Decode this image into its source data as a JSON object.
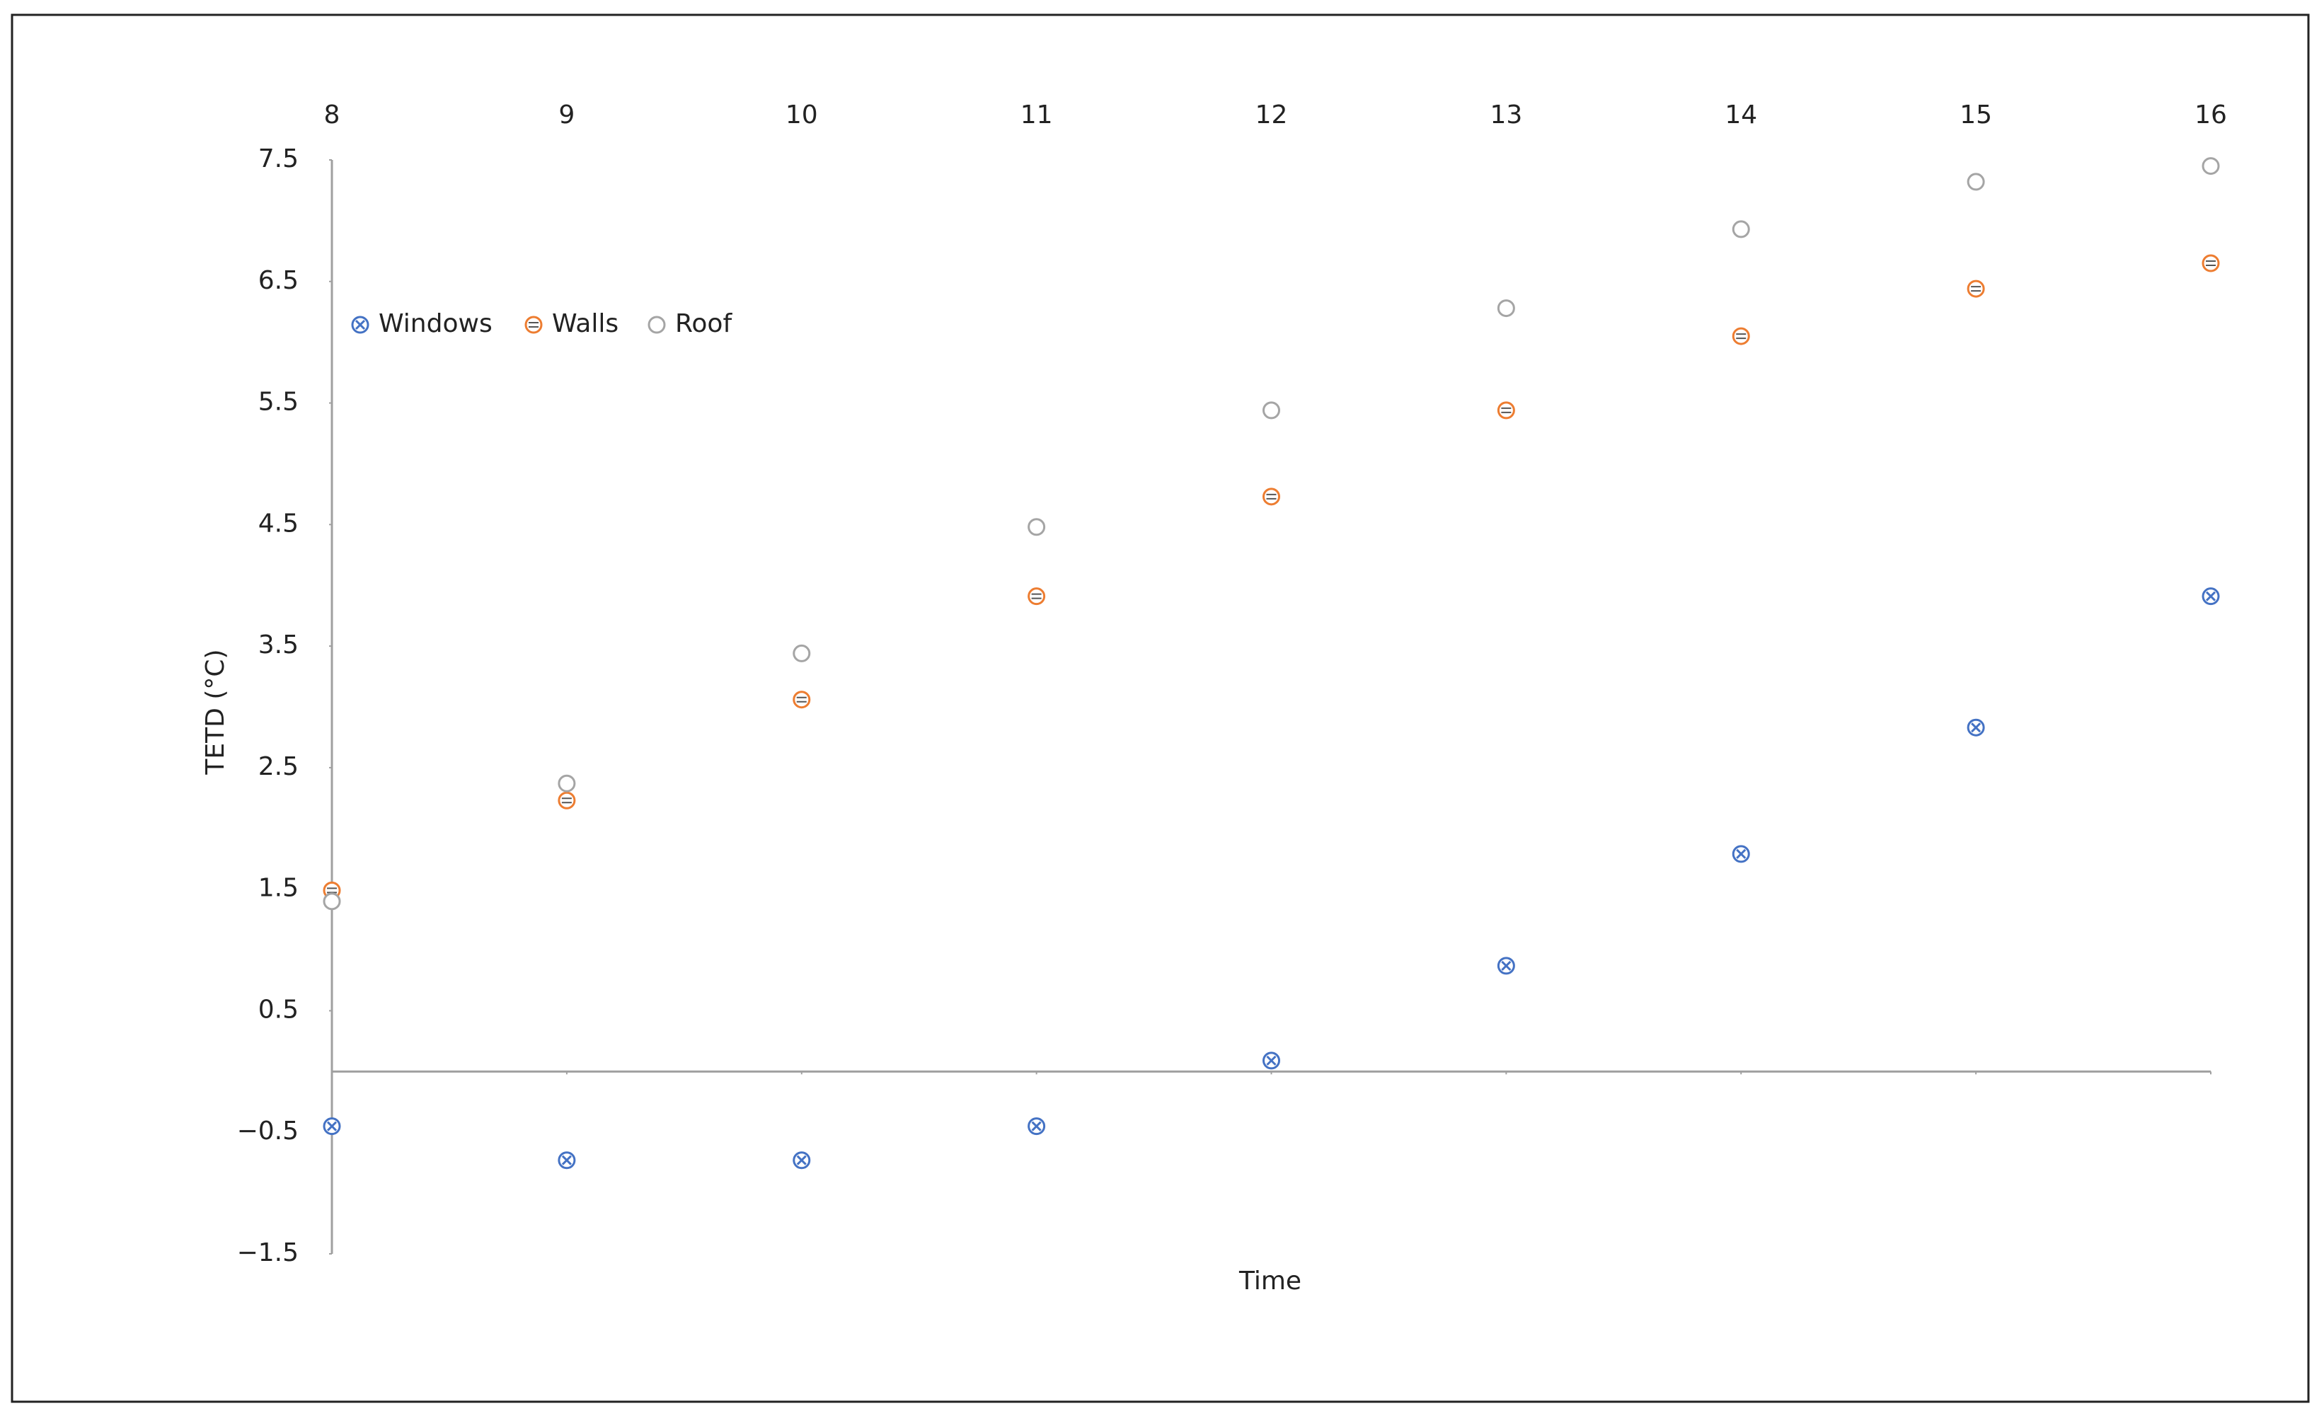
{
  "chart_data": {
    "type": "scatter",
    "x_label": "Time",
    "y_label": "TETD (°C)",
    "x": [
      8,
      9,
      10,
      11,
      12,
      13,
      14,
      15,
      16
    ],
    "series": [
      {
        "name": "Windows",
        "color": "#4472c4",
        "values": [
          -0.45,
          -0.73,
          -0.73,
          -0.45,
          0.09,
          0.87,
          1.79,
          2.83,
          3.91
        ]
      },
      {
        "name": "Walls",
        "color": "#ed7d31",
        "values": [
          1.49,
          2.23,
          3.06,
          3.91,
          4.73,
          5.44,
          6.05,
          6.44,
          6.65
        ]
      },
      {
        "name": "Roof",
        "color": "#a5a5a5",
        "values": [
          1.4,
          2.37,
          3.44,
          4.48,
          5.44,
          6.28,
          6.93,
          7.32,
          7.45
        ]
      }
    ],
    "xlim": [
      8,
      16
    ],
    "xticks": [
      8,
      9,
      10,
      11,
      12,
      13,
      14,
      15,
      16
    ],
    "ylim": [
      -1.5,
      7.5
    ],
    "yticks": [
      7.5,
      6.5,
      5.5,
      4.5,
      3.5,
      2.5,
      1.5,
      0.5,
      {
        "value": -0.5,
        "label": "−0.5"
      },
      {
        "value": -1.5,
        "label": "−1.5"
      }
    ],
    "grid": false,
    "legend": "upper left"
  }
}
